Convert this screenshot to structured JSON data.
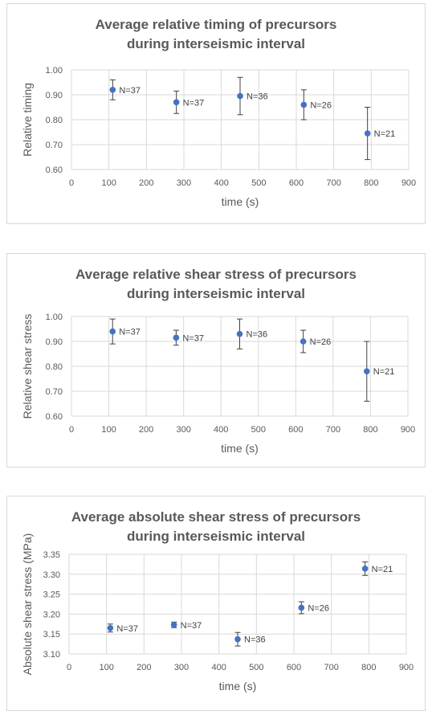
{
  "chart_data": [
    {
      "type": "scatter",
      "title_line1": "Average relative timing of precursors",
      "title_line2": "during interseismic interval",
      "xlabel": "time (s)",
      "ylabel": "Relative timing",
      "xlim": [
        0,
        900
      ],
      "ylim": [
        0.6,
        1.0
      ],
      "xticks": [
        "0",
        "100",
        "200",
        "300",
        "400",
        "500",
        "600",
        "700",
        "800",
        "900"
      ],
      "yticks": [
        "0.60",
        "0.70",
        "0.80",
        "0.90",
        "1.00"
      ],
      "grid": true,
      "color": "#4472c4",
      "points": [
        {
          "x": 110,
          "y": 0.92,
          "err": 0.04,
          "label": "N=37"
        },
        {
          "x": 280,
          "y": 0.87,
          "err": 0.045,
          "label": "N=37"
        },
        {
          "x": 450,
          "y": 0.895,
          "err": 0.075,
          "label": "N=36"
        },
        {
          "x": 620,
          "y": 0.86,
          "err": 0.06,
          "label": "N=26"
        },
        {
          "x": 790,
          "y": 0.745,
          "err": 0.105,
          "label": "N=21"
        }
      ]
    },
    {
      "type": "scatter",
      "title_line1": "Average relative shear stress of precursors",
      "title_line2": "during interseismic interval",
      "xlabel": "time (s)",
      "ylabel": "Relative shear stress",
      "xlim": [
        0,
        900
      ],
      "ylim": [
        0.6,
        1.0
      ],
      "xticks": [
        "0",
        "100",
        "200",
        "300",
        "400",
        "500",
        "600",
        "700",
        "800",
        "900"
      ],
      "yticks": [
        "0.60",
        "0.70",
        "0.80",
        "0.90",
        "1.00"
      ],
      "grid": true,
      "color": "#4472c4",
      "points": [
        {
          "x": 110,
          "y": 0.94,
          "err": 0.05,
          "label": "N=37"
        },
        {
          "x": 280,
          "y": 0.915,
          "err": 0.03,
          "label": "N=37"
        },
        {
          "x": 450,
          "y": 0.93,
          "err": 0.06,
          "label": "N=36"
        },
        {
          "x": 620,
          "y": 0.9,
          "err": 0.045,
          "label": "N=26"
        },
        {
          "x": 790,
          "y": 0.78,
          "err": 0.12,
          "label": "N=21"
        }
      ]
    },
    {
      "type": "scatter",
      "title_line1": "Average absolute shear stress of precursors",
      "title_line2": "during interseismic interval",
      "xlabel": "time (s)",
      "ylabel": "Absolute shear stress (MPa)",
      "xlim": [
        0,
        900
      ],
      "ylim": [
        3.1,
        3.35
      ],
      "xticks": [
        "0",
        "100",
        "200",
        "300",
        "400",
        "500",
        "600",
        "700",
        "800",
        "900"
      ],
      "yticks": [
        "3.10",
        "3.15",
        "3.20",
        "3.25",
        "3.30",
        "3.35"
      ],
      "grid": true,
      "color": "#4472c4",
      "points": [
        {
          "x": 110,
          "y": 3.165,
          "err": 0.01,
          "label": "N=37"
        },
        {
          "x": 280,
          "y": 3.173,
          "err": 0.007,
          "label": "N=37"
        },
        {
          "x": 450,
          "y": 3.137,
          "err": 0.017,
          "label": "N=36"
        },
        {
          "x": 620,
          "y": 3.216,
          "err": 0.015,
          "label": "N=26"
        },
        {
          "x": 790,
          "y": 3.314,
          "err": 0.017,
          "label": "N=21"
        }
      ]
    }
  ]
}
